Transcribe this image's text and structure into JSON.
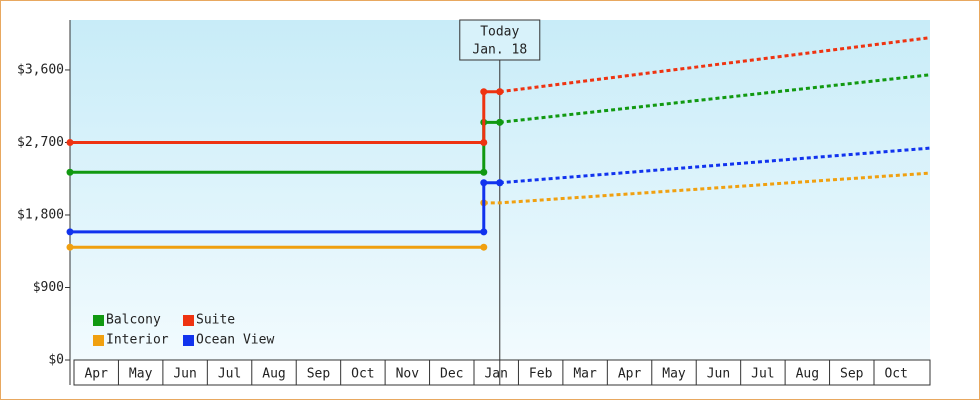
{
  "chart_data": {
    "type": "line",
    "ylim": [
      0,
      4220
    ],
    "yticks": [
      {
        "value": 0,
        "label": "$0"
      },
      {
        "value": 900,
        "label": "$900"
      },
      {
        "value": 1800,
        "label": "$1,800"
      },
      {
        "value": 2700,
        "label": "$2,700"
      },
      {
        "value": 3600,
        "label": "$3,600"
      }
    ],
    "xlim": [
      -0.09,
      19.26
    ],
    "xticks": [
      {
        "value": 0,
        "label": "Apr"
      },
      {
        "value": 1,
        "label": "May"
      },
      {
        "value": 2,
        "label": "Jun"
      },
      {
        "value": 3,
        "label": "Jul"
      },
      {
        "value": 4,
        "label": "Aug"
      },
      {
        "value": 5,
        "label": "Sep"
      },
      {
        "value": 6,
        "label": "Oct"
      },
      {
        "value": 7,
        "label": "Nov"
      },
      {
        "value": 8,
        "label": "Dec"
      },
      {
        "value": 9,
        "label": "Jan"
      },
      {
        "value": 10,
        "label": "Feb"
      },
      {
        "value": 11,
        "label": "Mar"
      },
      {
        "value": 12,
        "label": "Apr"
      },
      {
        "value": 13,
        "label": "May"
      },
      {
        "value": 14,
        "label": "Jun"
      },
      {
        "value": 15,
        "label": "Jul"
      },
      {
        "value": 16,
        "label": "Aug"
      },
      {
        "value": 17,
        "label": "Sep"
      },
      {
        "value": 18,
        "label": "Oct"
      }
    ],
    "today": {
      "x": 9.58,
      "label": [
        "Today",
        "Jan. 18"
      ]
    },
    "legend": "bottom-left",
    "series": [
      {
        "name": "Balcony",
        "color": "#119911",
        "x": [
          -0.09,
          9.22,
          9.22,
          9.58
        ],
        "values": [
          2330,
          2330,
          2950,
          2950
        ],
        "forecast_x": [
          9.58,
          19.26
        ],
        "forecast": [
          2950,
          3540
        ]
      },
      {
        "name": "Suite",
        "color": "#ee3311",
        "x": [
          -0.09,
          9.22,
          9.22,
          9.58
        ],
        "values": [
          2700,
          2700,
          3330,
          3330
        ],
        "forecast_x": [
          9.58,
          19.26
        ],
        "forecast": [
          3330,
          4000
        ]
      },
      {
        "name": "Interior",
        "color": "#f0a010",
        "x": [
          -0.09,
          9.22
        ],
        "values": [
          1400,
          1400
        ],
        "forecast_x": [
          9.22,
          9.58,
          19.26
        ],
        "forecast": [
          1950,
          1950,
          2320
        ]
      },
      {
        "name": "Ocean View",
        "color": "#1133ee",
        "x": [
          -0.09,
          9.22,
          9.22,
          9.58
        ],
        "values": [
          1590,
          1590,
          2200,
          2200
        ],
        "forecast_x": [
          9.58,
          19.26
        ],
        "forecast": [
          2200,
          2630
        ]
      }
    ]
  }
}
